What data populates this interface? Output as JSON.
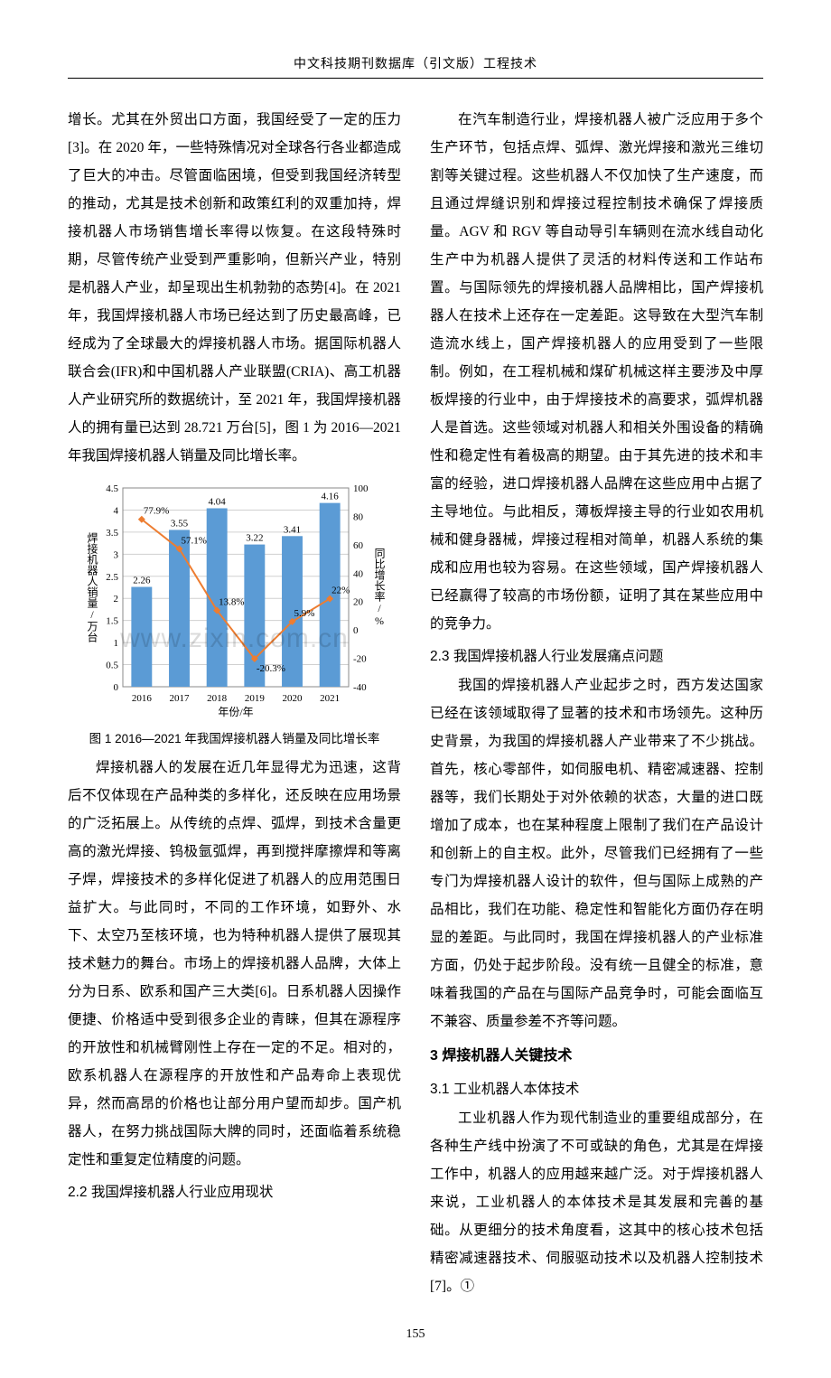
{
  "header": "中文科技期刊数据库（引文版）工程技术",
  "page_number": "155",
  "watermark": "www.zixin.com.cn",
  "left_col": {
    "p1": "增长。尤其在外贸出口方面，我国经受了一定的压力[3]。在 2020 年，一些特殊情况对全球各行各业都造成了巨大的冲击。尽管面临困境，但受到我国经济转型的推动，尤其是技术创新和政策红利的双重加持，焊接机器人市场销售增长率得以恢复。在这段特殊时期，尽管传统产业受到严重影响，但新兴产业，特别是机器人产业，却呈现出生机勃勃的态势[4]。在 2021 年，我国焊接机器人市场已经达到了历史最高峰，已经成为了全球最大的焊接机器人市场。据国际机器人联合会(IFR)和中国机器人产业联盟(CRIA)、高工机器人产业研究所的数据统计，至 2021 年，我国焊接机器人的拥有量已达到 28.721 万台[5]，图 1 为 2016—2021 年我国焊接机器人销量及同比增长率。",
    "chart_caption": "图 1  2016—2021 年我国焊接机器人销量及同比增长率",
    "p2": "焊接机器人的发展在近几年显得尤为迅速，这背后不仅体现在产品种类的多样化，还反映在应用场景的广泛拓展上。从传统的点焊、弧焊，到技术含量更高的激光焊接、钨极氩弧焊，再到搅拌摩擦焊和等离子焊，焊接技术的多样化促进了机器人的应用范围日益扩大。与此同时，不同的工作环境，如野外、水下、太空乃至核环境，也为特种机器人提供了展现其技术魅力的舞台。市场上的焊接机器人品牌，大体上分为日系、欧系和国产三大类[6]。日系机器人因操作便捷、价格适中受到很多企业的青睐，但其在源程序的开放性和机械臂刚性上存在一定的不足。相对的，欧系机器人在源程序的开放性和产品寿命上表现优异，然而高昂的价格也让部分用户望而却步。国产机器人，在努力挑战国际大牌的同时，还面临着系统稳定性和重复定位精度的问题。",
    "h22": "2.2 我国焊接机器人行业应用现状"
  },
  "right_col": {
    "p1": "在汽车制造行业，焊接机器人被广泛应用于多个生产环节，包括点焊、弧焊、激光焊接和激光三维切割等关键过程。这些机器人不仅加快了生产速度，而且通过焊缝识别和焊接过程控制技术确保了焊接质量。AGV 和 RGV 等自动导引车辆则在流水线自动化生产中为机器人提供了灵活的材料传送和工作站布置。与国际领先的焊接机器人品牌相比，国产焊接机器人在技术上还存在一定差距。这导致在大型汽车制造流水线上，国产焊接机器人的应用受到了一些限制。例如，在工程机械和煤矿机械这样主要涉及中厚板焊接的行业中，由于焊接技术的高要求，弧焊机器人是首选。这些领域对机器人和相关外围设备的精确性和稳定性有着极高的期望。由于其先进的技术和丰富的经验，进口焊接机器人品牌在这些应用中占据了主导地位。与此相反，薄板焊接主导的行业如农用机械和健身器械，焊接过程相对简单，机器人系统的集成和应用也较为容易。在这些领域，国产焊接机器人已经赢得了较高的市场份额，证明了其在某些应用中的竞争力。",
    "h23": "2.3 我国焊接机器人行业发展痛点问题",
    "p2": "我国的焊接机器人产业起步之时，西方发达国家已经在该领域取得了显著的技术和市场领先。这种历史背景，为我国的焊接机器人产业带来了不少挑战。首先，核心零部件，如伺服电机、精密减速器、控制器等，我们长期处于对外依赖的状态，大量的进口既增加了成本，也在某种程度上限制了我们在产品设计和创新上的自主权。此外，尽管我们已经拥有了一些专门为焊接机器人设计的软件，但与国际上成熟的产品相比，我们在功能、稳定性和智能化方面仍存在明显的差距。与此同时，我国在焊接机器人的产业标准方面，仍处于起步阶段。没有统一且健全的标准，意味着我国的产品在与国际产品竞争时，可能会面临互不兼容、质量参差不齐等问题。",
    "h3": "3 焊接机器人关键技术",
    "h31": "3.1 工业机器人本体技术",
    "p3": "工业机器人作为现代制造业的重要组成部分，在各种生产线中扮演了不可或缺的角色，尤其是在焊接工作中，机器人的应用越来越广泛。对于焊接机器人来说，工业机器人的本体技术是其发展和完善的基础。从更细分的技术角度看，这其中的核心技术包括精密减速器技术、伺服驱动技术以及机器人控制技术[7]。①"
  },
  "chart": {
    "type": "bar+line",
    "categories": [
      "2016",
      "2017",
      "2018",
      "2019",
      "2020",
      "2021"
    ],
    "bar_values": [
      2.26,
      3.55,
      4.04,
      3.22,
      3.41,
      4.16
    ],
    "bar_labels": [
      "2.26",
      "3.55",
      "4.04",
      "3.22",
      "3.41",
      "4.16"
    ],
    "line_values": [
      77.9,
      57.1,
      13.8,
      -20.3,
      5.9,
      22
    ],
    "line_labels": [
      "77.9%",
      "57.1%",
      "13.8%",
      "-20.3%",
      "5.9%",
      "22%"
    ],
    "bar_color": "#5b9bd5",
    "line_color": "#ed7d31",
    "marker_color": "#ed7d31",
    "grid_color": "#d0d0d0",
    "background_color": "#ffffff",
    "left_y": {
      "min": 0,
      "max": 4.5,
      "step": 0.5,
      "label": "焊接机器人销量/万台"
    },
    "right_y": {
      "min": -40,
      "max": 100,
      "step": 20,
      "label": "同比增长率/%"
    },
    "x_label": "年份/年",
    "title_fontsize": 13.5,
    "tick_fontsize": 11,
    "data_label_fontsize": 11,
    "bar_width": 0.55
  }
}
